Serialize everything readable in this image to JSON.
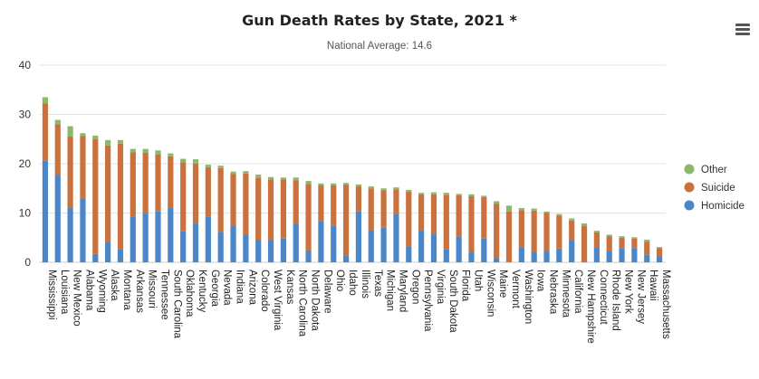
{
  "chart_data": {
    "type": "bar",
    "stacked": true,
    "title": "Gun Death Rates by State, 2021 *",
    "subtitle": "National Average: 14.6",
    "ylim": [
      0,
      40
    ],
    "yticks": [
      0,
      10,
      20,
      30,
      40
    ],
    "grid": true,
    "legend_position": "right",
    "categories": [
      "Mississippi",
      "Louisiana",
      "New Mexico",
      "Alabama",
      "Wyoming",
      "Alaska",
      "Montana",
      "Arkansas",
      "Missouri",
      "Tennessee",
      "South Carolina",
      "Oklahoma",
      "Kentucky",
      "Georgia",
      "Nevada",
      "Indiana",
      "Arizona",
      "Colorado",
      "West Virginia",
      "Kansas",
      "North Carolina",
      "North Dakota",
      "Delaware",
      "Ohio",
      "Idaho",
      "Illinois",
      "Texas",
      "Michigan",
      "Maryland",
      "Oregon",
      "Pennsylvania",
      "Virginia",
      "South Dakota",
      "Florida",
      "Utah",
      "Wisconsin",
      "Maine",
      "Vermont",
      "Washington",
      "Iowa",
      "Nebraska",
      "Minnesota",
      "California",
      "New Hampshire",
      "Connecticut",
      "Rhode Island",
      "New York",
      "New Jersey",
      "Hawaii",
      "Massachusetts"
    ],
    "series": [
      {
        "name": "Homicide",
        "color": "#4a86c8",
        "values": [
          20.6,
          17.8,
          11.0,
          13.0,
          1.7,
          4.2,
          2.7,
          9.3,
          9.9,
          10.3,
          11.0,
          6.3,
          8.0,
          9.3,
          6.2,
          7.5,
          5.7,
          4.5,
          4.5,
          4.8,
          7.8,
          2.4,
          8.4,
          7.4,
          1.4,
          10.3,
          6.5,
          7.0,
          9.8,
          3.2,
          6.5,
          5.8,
          2.6,
          5.2,
          2.1,
          4.8,
          0.9,
          0.0,
          3.1,
          2.1,
          2.3,
          2.8,
          4.5,
          0.0,
          3.1,
          2.3,
          2.9,
          2.9,
          1.5,
          1.3
        ]
      },
      {
        "name": "Suicide",
        "color": "#c9723e",
        "values": [
          11.6,
          10.2,
          14.5,
          12.6,
          23.3,
          19.5,
          21.4,
          13.0,
          12.3,
          11.6,
          10.5,
          14.0,
          12.0,
          10.0,
          12.9,
          10.4,
          12.3,
          12.7,
          12.3,
          12.0,
          8.8,
          13.5,
          7.2,
          8.2,
          14.3,
          5.1,
          8.5,
          7.6,
          5.0,
          11.1,
          7.3,
          8.0,
          11.1,
          8.4,
          11.3,
          8.4,
          11.0,
          10.3,
          7.5,
          8.4,
          7.7,
          6.7,
          4.0,
          7.4,
          3.0,
          3.0,
          2.1,
          1.9,
          2.7,
          1.6
        ]
      },
      {
        "name": "Other",
        "color": "#8bb86b",
        "values": [
          1.3,
          0.9,
          2.1,
          0.6,
          0.7,
          1.1,
          0.7,
          0.7,
          0.8,
          0.8,
          0.6,
          0.7,
          0.9,
          0.5,
          0.5,
          0.5,
          0.5,
          0.6,
          0.5,
          0.4,
          0.6,
          0.6,
          0.4,
          0.4,
          0.4,
          0.4,
          0.4,
          0.4,
          0.4,
          0.4,
          0.3,
          0.4,
          0.4,
          0.3,
          0.4,
          0.3,
          0.5,
          1.2,
          0.4,
          0.4,
          0.3,
          0.3,
          0.4,
          0.5,
          0.3,
          0.3,
          0.3,
          0.3,
          0.4,
          0.2
        ]
      }
    ],
    "legend": [
      {
        "label": "Other",
        "color": "#8bb86b"
      },
      {
        "label": "Suicide",
        "color": "#c9723e"
      },
      {
        "label": "Homicide",
        "color": "#4a86c8"
      }
    ]
  },
  "menu_icon": "hamburger-menu-icon"
}
